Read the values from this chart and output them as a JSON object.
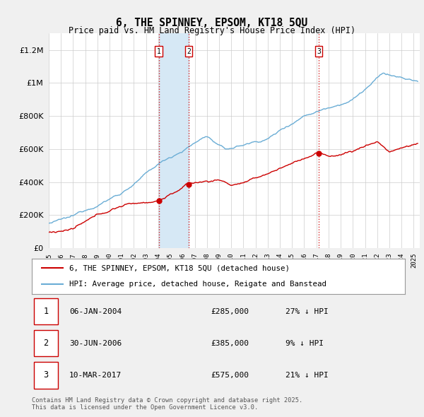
{
  "title": "6, THE SPINNEY, EPSOM, KT18 5QU",
  "subtitle": "Price paid vs. HM Land Registry's House Price Index (HPI)",
  "ytick_vals": [
    0,
    200000,
    400000,
    600000,
    800000,
    1000000,
    1200000
  ],
  "ylim": [
    0,
    1300000
  ],
  "xlim_start": 1995.0,
  "xlim_end": 2025.5,
  "hpi_color": "#6aadd5",
  "price_color": "#CC0000",
  "transactions": [
    {
      "date": 2004.04,
      "price": 285000,
      "label": "1"
    },
    {
      "date": 2006.5,
      "price": 385000,
      "label": "2"
    },
    {
      "date": 2017.19,
      "price": 575000,
      "label": "3"
    }
  ],
  "vline_color": "#CC0000",
  "vshade_color": "#d6e8f5",
  "vshade_x1": 2004.04,
  "vshade_x2": 2006.5,
  "legend_label_red": "6, THE SPINNEY, EPSOM, KT18 5QU (detached house)",
  "legend_label_blue": "HPI: Average price, detached house, Reigate and Banstead",
  "table_entries": [
    {
      "num": "1",
      "date": "06-JAN-2004",
      "price": "£285,000",
      "pct": "27% ↓ HPI"
    },
    {
      "num": "2",
      "date": "30-JUN-2006",
      "price": "£385,000",
      "pct": "9% ↓ HPI"
    },
    {
      "num": "3",
      "date": "10-MAR-2017",
      "price": "£575,000",
      "pct": "21% ↓ HPI"
    }
  ],
  "footnote": "Contains HM Land Registry data © Crown copyright and database right 2025.\nThis data is licensed under the Open Government Licence v3.0.",
  "background_color": "#F0F0F0",
  "plot_bg_color": "#FFFFFF",
  "grid_color": "#CCCCCC",
  "fig_width": 6.0,
  "fig_height": 5.9,
  "dpi": 100
}
